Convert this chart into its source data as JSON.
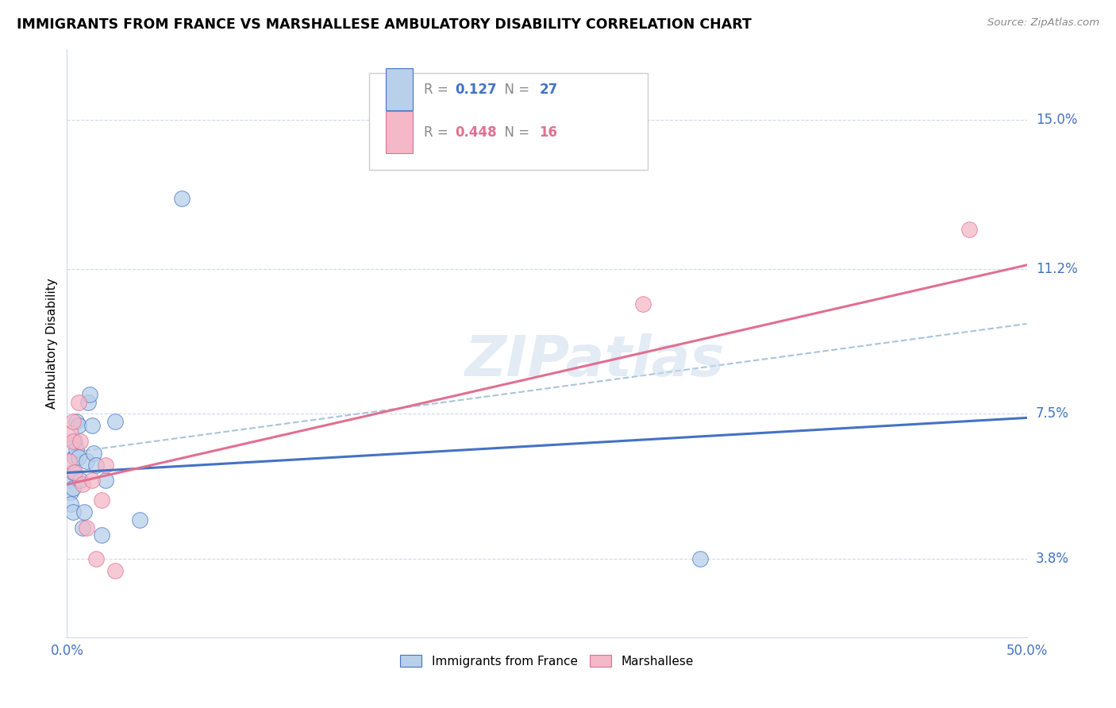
{
  "title": "IMMIGRANTS FROM FRANCE VS MARSHALLESE AMBULATORY DISABILITY CORRELATION CHART",
  "source": "Source: ZipAtlas.com",
  "ylabel": "Ambulatory Disability",
  "yticks": [
    0.038,
    0.075,
    0.112,
    0.15
  ],
  "ytick_labels": [
    "3.8%",
    "7.5%",
    "11.2%",
    "15.0%"
  ],
  "xlim": [
    0.0,
    0.5
  ],
  "ylim": [
    0.018,
    0.168
  ],
  "blue_color": "#b8d0ea",
  "blue_line_color": "#4472c4",
  "pink_color": "#f4b8c8",
  "pink_line_color": "#e07090",
  "dashed_line_color": "#aac4dc",
  "watermark": "ZIPatlas",
  "blue_x": [
    0.001,
    0.002,
    0.002,
    0.003,
    0.003,
    0.003,
    0.004,
    0.004,
    0.005,
    0.005,
    0.006,
    0.006,
    0.007,
    0.008,
    0.009,
    0.01,
    0.011,
    0.012,
    0.013,
    0.014,
    0.015,
    0.018,
    0.02,
    0.025,
    0.038,
    0.06,
    0.33
  ],
  "blue_y": [
    0.058,
    0.055,
    0.052,
    0.06,
    0.056,
    0.05,
    0.068,
    0.064,
    0.073,
    0.066,
    0.072,
    0.064,
    0.058,
    0.046,
    0.05,
    0.063,
    0.078,
    0.08,
    0.072,
    0.065,
    0.062,
    0.044,
    0.058,
    0.073,
    0.048,
    0.13,
    0.038
  ],
  "pink_x": [
    0.001,
    0.002,
    0.003,
    0.003,
    0.004,
    0.006,
    0.007,
    0.008,
    0.01,
    0.013,
    0.015,
    0.018,
    0.02,
    0.025,
    0.3,
    0.47
  ],
  "pink_y": [
    0.063,
    0.07,
    0.073,
    0.068,
    0.06,
    0.078,
    0.068,
    0.057,
    0.046,
    0.058,
    0.038,
    0.053,
    0.062,
    0.035,
    0.103,
    0.122
  ],
  "blue_trend_x": [
    0.0,
    0.5
  ],
  "blue_trend_y": [
    0.06,
    0.074
  ],
  "pink_trend_x": [
    0.0,
    0.5
  ],
  "pink_trend_y": [
    0.057,
    0.113
  ],
  "dashed_trend_x": [
    0.0,
    0.5
  ],
  "dashed_trend_y": [
    0.065,
    0.098
  ],
  "legend_r1_val": "0.127",
  "legend_n1_val": "27",
  "legend_r2_val": "0.448",
  "legend_n2_val": "16"
}
